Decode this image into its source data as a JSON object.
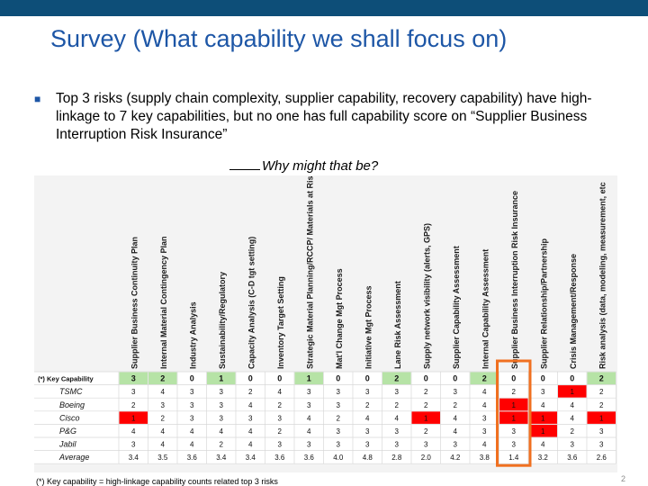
{
  "slide": {
    "title": "Survey (What capability we shall focus on)",
    "bullet": "Top 3 risks (supply chain complexity, supplier capability, recovery capability) have high-linkage to 7 key capabilities, but no one has full capability score on “Supplier Business Interruption Risk Insurance”",
    "question": "Why might that be?",
    "footnote": "(*) Key capability = high-linkage capability counts related top 3 risks",
    "page_number": "2"
  },
  "table": {
    "columns": [
      "Supplier Business Continuity Plan",
      "Internal Material Contingency Plan",
      "Industry Analysis",
      "Sustainability/Regulatory",
      "Capacity Analysis (C-D tgt setting)",
      "Inventory Target Setting",
      "Strategic Material Planning/RCCP/ Materials at Risk",
      "Mat'l Change Mgt Process",
      "Initiative Mgt Process",
      "Lane Risk Assessment",
      "Supply network visibility (alerts, GPS)",
      "Supplier Capability Assessment",
      "Internal Capability Assessment",
      "Supplier Business Interruption Risk Insurance",
      "Supplier Relationship/Partnership",
      "Crisis Management/Response",
      "Risk analysis (data, modeling, measurement, etc"
    ],
    "highlight_column": "Supplier Business Interruption Risk Insurance",
    "key_row": {
      "label": "(*) Key Capability",
      "values": [
        "3",
        "2",
        "0",
        "1",
        "0",
        "0",
        "1",
        "0",
        "0",
        "2",
        "0",
        "0",
        "2",
        "0",
        "0",
        "0",
        "2"
      ]
    },
    "rows": [
      {
        "label": "TSMC",
        "values": [
          "3",
          "4",
          "3",
          "3",
          "2",
          "4",
          "3",
          "3",
          "3",
          "3",
          "2",
          "3",
          "4",
          "2",
          "3",
          "1",
          "2"
        ]
      },
      {
        "label": "Boeing",
        "values": [
          "2",
          "3",
          "3",
          "3",
          "4",
          "2",
          "3",
          "3",
          "2",
          "2",
          "2",
          "2",
          "4",
          "1",
          "4",
          "4",
          "2"
        ]
      },
      {
        "label": "Cisco",
        "values": [
          "1",
          "2",
          "3",
          "3",
          "3",
          "3",
          "4",
          "2",
          "4",
          "4",
          "1",
          "4",
          "3",
          "1",
          "1",
          "4",
          "1"
        ]
      },
      {
        "label": "P&G",
        "values": [
          "4",
          "4",
          "4",
          "4",
          "4",
          "2",
          "4",
          "3",
          "3",
          "3",
          "2",
          "4",
          "3",
          "3",
          "1",
          "2",
          "3"
        ]
      },
      {
        "label": "Jabil",
        "values": [
          "3",
          "4",
          "4",
          "2",
          "4",
          "3",
          "3",
          "3",
          "3",
          "3",
          "3",
          "3",
          "4",
          "3",
          "4",
          "3",
          "3"
        ]
      }
    ],
    "average": {
      "label": "Average",
      "values": [
        "3.4",
        "3.5",
        "3.6",
        "3.4",
        "3.4",
        "3.6",
        "3.6",
        "4.0",
        "4.8",
        "2.8",
        "2.0",
        "4.2",
        "3.8",
        "1.4",
        "3.2",
        "3.6",
        "2.6"
      ]
    },
    "colors": {
      "key_fill": "#b6e3a6",
      "low_fill": "#ff0000",
      "highlight_border": "#f07020",
      "grid": "#d8d8d8"
    }
  }
}
